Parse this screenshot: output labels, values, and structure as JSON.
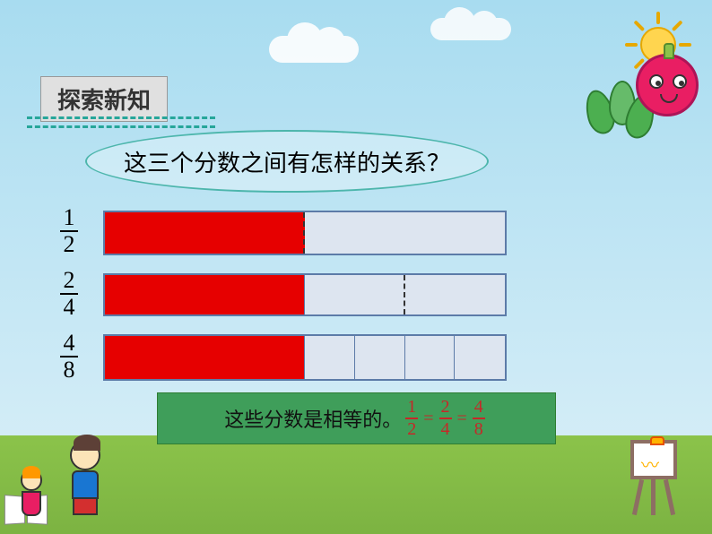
{
  "section_title": "探索新知",
  "question": "这三个分数之间有怎样的关系？",
  "fractions": [
    {
      "numerator": "1",
      "denominator": "2"
    },
    {
      "numerator": "2",
      "denominator": "4"
    },
    {
      "numerator": "4",
      "denominator": "8"
    }
  ],
  "bars": {
    "bar1": {
      "cells": [
        {
          "filled": true,
          "width_pct": 50,
          "dashed_right": true
        },
        {
          "filled": false,
          "width_pct": 50
        }
      ],
      "border_color": "#5c7ba8",
      "fill_color": "#e60000",
      "empty_color": "#dde5f0"
    },
    "bar2": {
      "cells": [
        {
          "filled": true,
          "width_pct": 50
        },
        {
          "filled": false,
          "width_pct": 25,
          "dashed_right": true
        },
        {
          "filled": false,
          "width_pct": 25
        }
      ],
      "border_color": "#5c7ba8",
      "fill_color": "#e60000",
      "empty_color": "#dde5f0"
    },
    "bar3": {
      "cells": [
        {
          "filled": true,
          "width_pct": 50
        },
        {
          "filled": false,
          "width_pct": 12.5
        },
        {
          "filled": false,
          "width_pct": 12.5
        },
        {
          "filled": false,
          "width_pct": 12.5
        },
        {
          "filled": false,
          "width_pct": 12.5
        }
      ],
      "border_color": "#5c7ba8",
      "fill_color": "#e60000",
      "empty_color": "#dde5f0"
    }
  },
  "conclusion": {
    "text": "这些分数是相等的。",
    "equation": [
      {
        "n": "1",
        "d": "2"
      },
      {
        "n": "2",
        "d": "4"
      },
      {
        "n": "4",
        "d": "8"
      }
    ],
    "box_bg": "#3f9e5a",
    "frac_color": "#c62828"
  },
  "colors": {
    "sky_top": "#a8dcf0",
    "sky_bottom": "#d4edf7",
    "grass": "#8bc34a",
    "title_bg": "#e0e0e0",
    "dash_color": "#26a69a",
    "bubble_border": "#4db6ac"
  }
}
